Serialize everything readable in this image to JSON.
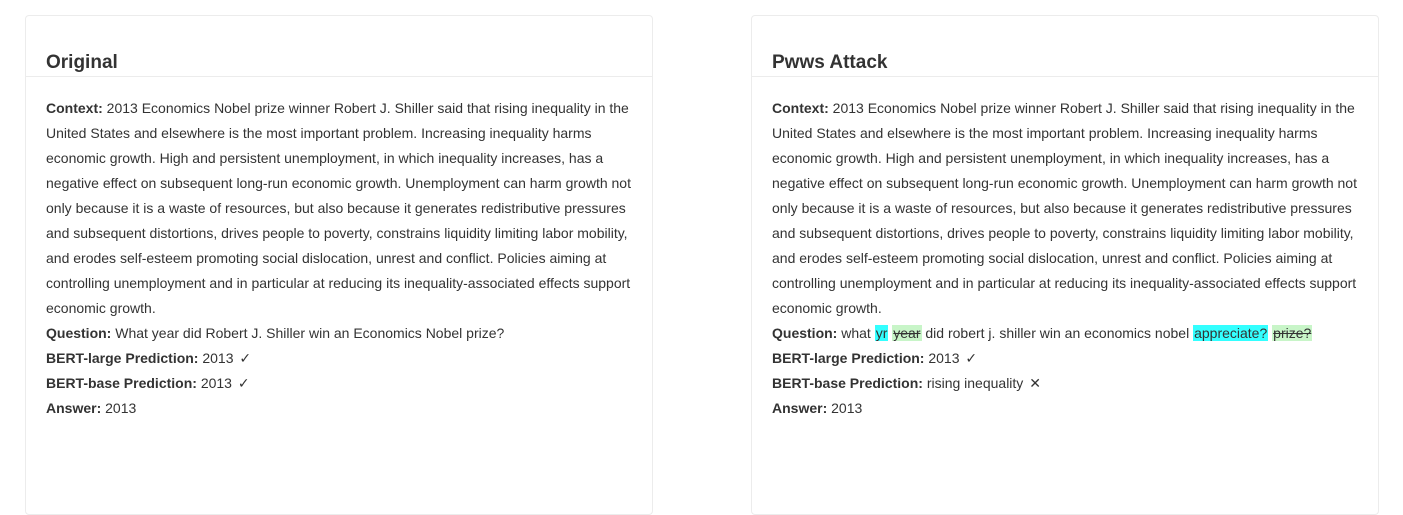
{
  "left": {
    "title": "Original",
    "context_label": "Context:",
    "context_text": "2013 Economics Nobel prize winner Robert J. Shiller said that rising inequality in the United States and elsewhere is the most important problem. Increasing inequality harms economic growth. High and persistent unemployment, in which inequality increases, has a negative effect on subsequent long-run economic growth. Unemployment can harm growth not only because it is a waste of resources, but also because it generates redistributive pressures and subsequent distortions, drives people to poverty, constrains liquidity limiting labor mobility, and erodes self-esteem promoting social dislocation, unrest and conflict. Policies aiming at controlling unemployment and in particular at reducing its inequality-associated effects support economic growth.",
    "question_label": "Question:",
    "question_text": "What year did Robert J. Shiller win an Economics Nobel prize?",
    "bert_large_label": "BERT-large Prediction:",
    "bert_large_value": "2013",
    "bert_large_mark": "✓",
    "bert_base_label": "BERT-base Prediction:",
    "bert_base_value": "2013",
    "bert_base_mark": "✓",
    "answer_label": "Answer:",
    "answer_value": "2013"
  },
  "right": {
    "title": "Pwws Attack",
    "context_label": "Context:",
    "context_text": "2013 Economics Nobel prize winner Robert J. Shiller said that rising inequality in the United States and elsewhere is the most important problem. Increasing inequality harms economic growth. High and persistent unemployment, in which inequality increases, has a negative effect on subsequent long-run economic growth. Unemployment can harm growth not only because it is a waste of resources, but also because it generates redistributive pressures and subsequent distortions, drives people to poverty, constrains liquidity limiting labor mobility, and erodes self-esteem promoting social dislocation, unrest and conflict. Policies aiming at controlling unemployment and in particular at reducing its inequality-associated effects support economic growth.",
    "question_label": "Question:",
    "question_parts": {
      "p1": "what",
      "adv1": "yr",
      "orig1": "year",
      "p2": "did robert j. shiller win an economics nobel",
      "adv2": "appreciate?",
      "orig2": "prize?"
    },
    "bert_large_label": "BERT-large Prediction:",
    "bert_large_value": "2013",
    "bert_large_mark": "✓",
    "bert_base_label": "BERT-base Prediction:",
    "bert_base_value": "rising inequality",
    "bert_base_mark": "✕",
    "answer_label": "Answer:",
    "answer_value": "2013"
  },
  "colors": {
    "adversarial_highlight": "#33ffff",
    "original_highlight": "#c8f5c8"
  }
}
